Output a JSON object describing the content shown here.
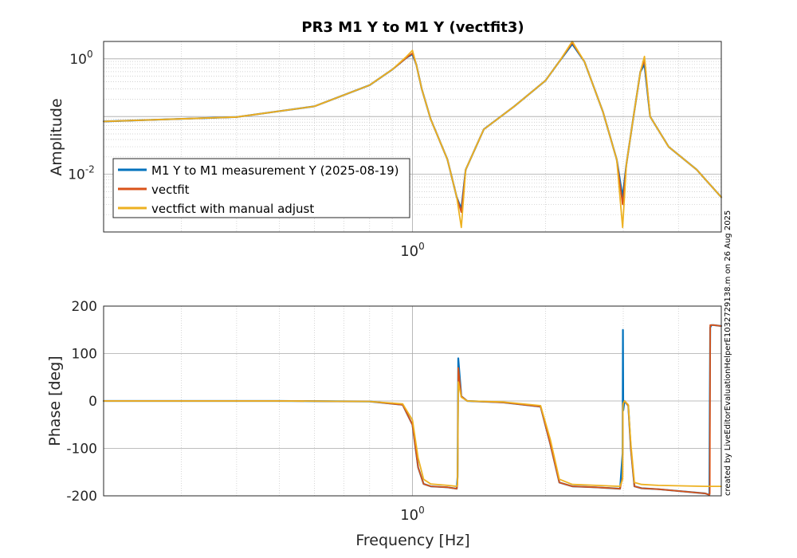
{
  "chart_data": [
    {
      "type": "line",
      "title": "PR3 M1 Y to M1 Y (vectfit3)",
      "xlabel": "",
      "ylabel": "Amplitude",
      "xscale": "log",
      "yscale": "log",
      "xlim": [
        0.2,
        5
      ],
      "ylim": [
        0.001,
        2
      ],
      "xticks": [
        {
          "value": 1,
          "base": "10",
          "exp": "0"
        }
      ],
      "yticks": [
        {
          "value": 1,
          "base": "10",
          "exp": "0"
        },
        {
          "value": 0.01,
          "base": "10",
          "exp": "-2"
        }
      ],
      "grid": true,
      "legend": {
        "position": "bottom-left",
        "entries": [
          "M1 Y to M1 measurement Y (2025-08-19)",
          "vectfit",
          "vectfict with manual adjust"
        ]
      },
      "series": [
        {
          "name": "M1 Y to M1 measurement Y (2025-08-19)",
          "color": "#0072BD",
          "x": [
            0.2,
            0.4,
            0.6,
            0.8,
            0.9,
            0.97,
            1.0,
            1.02,
            1.05,
            1.1,
            1.2,
            1.26,
            1.29,
            1.32,
            1.45,
            1.7,
            2.0,
            2.15,
            2.3,
            2.45,
            2.7,
            2.9,
            2.99,
            3.05,
            3.15,
            3.28,
            3.35,
            3.45,
            3.8,
            4.4,
            5.0
          ],
          "y": [
            0.082,
            0.098,
            0.15,
            0.35,
            0.65,
            1.05,
            1.2,
            0.8,
            0.3,
            0.09,
            0.018,
            0.004,
            0.0025,
            0.012,
            0.06,
            0.15,
            0.42,
            0.9,
            1.8,
            0.9,
            0.12,
            0.018,
            0.004,
            0.015,
            0.08,
            0.6,
            0.8,
            0.1,
            0.03,
            0.012,
            0.004
          ]
        },
        {
          "name": "vectfit",
          "color": "#D95319",
          "x": [
            0.2,
            0.4,
            0.6,
            0.8,
            0.9,
            0.97,
            1.0,
            1.02,
            1.05,
            1.1,
            1.2,
            1.26,
            1.29,
            1.32,
            1.45,
            1.7,
            2.0,
            2.15,
            2.3,
            2.45,
            2.7,
            2.9,
            2.99,
            3.05,
            3.15,
            3.28,
            3.35,
            3.45,
            3.8,
            4.4,
            5.0
          ],
          "y": [
            0.082,
            0.098,
            0.15,
            0.35,
            0.65,
            1.05,
            1.25,
            0.8,
            0.3,
            0.09,
            0.018,
            0.004,
            0.0022,
            0.012,
            0.06,
            0.15,
            0.42,
            0.9,
            1.9,
            0.9,
            0.12,
            0.018,
            0.003,
            0.015,
            0.08,
            0.6,
            0.95,
            0.1,
            0.03,
            0.012,
            0.004
          ]
        },
        {
          "name": "vectfict with manual adjust",
          "color": "#EDB120",
          "x": [
            0.2,
            0.4,
            0.6,
            0.8,
            0.9,
            0.97,
            1.0,
            1.02,
            1.05,
            1.1,
            1.2,
            1.26,
            1.29,
            1.32,
            1.45,
            1.7,
            2.0,
            2.15,
            2.3,
            2.45,
            2.7,
            2.9,
            2.99,
            3.05,
            3.15,
            3.28,
            3.35,
            3.45,
            3.8,
            4.4,
            5.0
          ],
          "y": [
            0.082,
            0.098,
            0.15,
            0.35,
            0.65,
            1.1,
            1.4,
            0.8,
            0.3,
            0.09,
            0.018,
            0.004,
            0.0012,
            0.012,
            0.06,
            0.15,
            0.42,
            0.9,
            2.0,
            0.9,
            0.12,
            0.018,
            0.0012,
            0.015,
            0.08,
            0.6,
            1.1,
            0.1,
            0.03,
            0.012,
            0.004
          ]
        }
      ]
    },
    {
      "type": "line",
      "title": "",
      "xlabel": "Frequency [Hz]",
      "ylabel": "Phase [deg]",
      "xscale": "log",
      "yscale": "linear",
      "xlim": [
        0.2,
        5
      ],
      "ylim": [
        -200,
        200
      ],
      "xticks": [
        {
          "value": 1,
          "base": "10",
          "exp": "0"
        }
      ],
      "yticks": [
        200,
        100,
        0,
        -100,
        -200
      ],
      "grid": true,
      "series": [
        {
          "name": "M1 Y to M1 measurement Y (2025-08-19)",
          "color": "#0072BD",
          "x": [
            0.2,
            0.5,
            0.8,
            0.95,
            1.0,
            1.03,
            1.06,
            1.1,
            1.2,
            1.26,
            1.265,
            1.27,
            1.29,
            1.33,
            1.6,
            1.95,
            2.05,
            2.15,
            2.3,
            2.6,
            2.95,
            2.99,
            2.995,
            3.0,
            3.02,
            3.08,
            3.12,
            3.18,
            3.3,
            3.6,
            4.6,
            4.7,
            4.71,
            4.72,
            4.75,
            4.8,
            5.0
          ],
          "y": [
            0,
            0,
            -1,
            -8,
            -50,
            -140,
            -175,
            -180,
            -182,
            -185,
            -160,
            90,
            10,
            0,
            -3,
            -12,
            -90,
            -172,
            -180,
            -182,
            -185,
            -110,
            150,
            -20,
            0,
            -10,
            -100,
            -180,
            -184,
            -186,
            -195,
            -198,
            0,
            155,
            160,
            160,
            158
          ]
        },
        {
          "name": "vectfit",
          "color": "#D95319",
          "x": [
            0.2,
            0.5,
            0.8,
            0.95,
            1.0,
            1.03,
            1.06,
            1.1,
            1.2,
            1.26,
            1.265,
            1.27,
            1.29,
            1.33,
            1.6,
            1.95,
            2.05,
            2.15,
            2.3,
            2.6,
            2.95,
            2.99,
            2.995,
            3.0,
            3.02,
            3.08,
            3.12,
            3.18,
            3.3,
            3.6,
            4.6,
            4.7,
            4.71,
            4.72,
            4.75,
            4.8,
            5.0
          ],
          "y": [
            0,
            0,
            -1,
            -8,
            -50,
            -140,
            -175,
            -180,
            -182,
            -185,
            -175,
            70,
            10,
            0,
            -3,
            -12,
            -90,
            -172,
            -180,
            -182,
            -185,
            -160,
            -10,
            -5,
            0,
            -10,
            -100,
            -180,
            -184,
            -186,
            -195,
            -198,
            -195,
            160,
            160,
            160,
            158
          ]
        },
        {
          "name": "vectfict with manual adjust",
          "color": "#EDB120",
          "x": [
            0.2,
            0.5,
            0.8,
            0.95,
            1.0,
            1.03,
            1.06,
            1.1,
            1.2,
            1.26,
            1.265,
            1.27,
            1.29,
            1.33,
            1.6,
            1.95,
            2.05,
            2.15,
            2.3,
            2.6,
            2.95,
            2.99,
            2.995,
            3.0,
            3.02,
            3.08,
            3.12,
            3.18,
            3.3,
            3.6,
            4.6,
            4.7,
            4.75,
            4.8,
            5.0
          ],
          "y": [
            0,
            0,
            -1,
            -6,
            -40,
            -120,
            -165,
            -175,
            -178,
            -180,
            -175,
            40,
            8,
            0,
            -2,
            -10,
            -80,
            -165,
            -176,
            -178,
            -180,
            -165,
            -15,
            -5,
            0,
            -8,
            -90,
            -172,
            -176,
            -178,
            -180,
            -180,
            -180,
            -180,
            -180
          ]
        }
      ]
    }
  ],
  "side_note": "created by LiveEditorEvaluationHelperE1032729138.m on 26 Aug 2025"
}
